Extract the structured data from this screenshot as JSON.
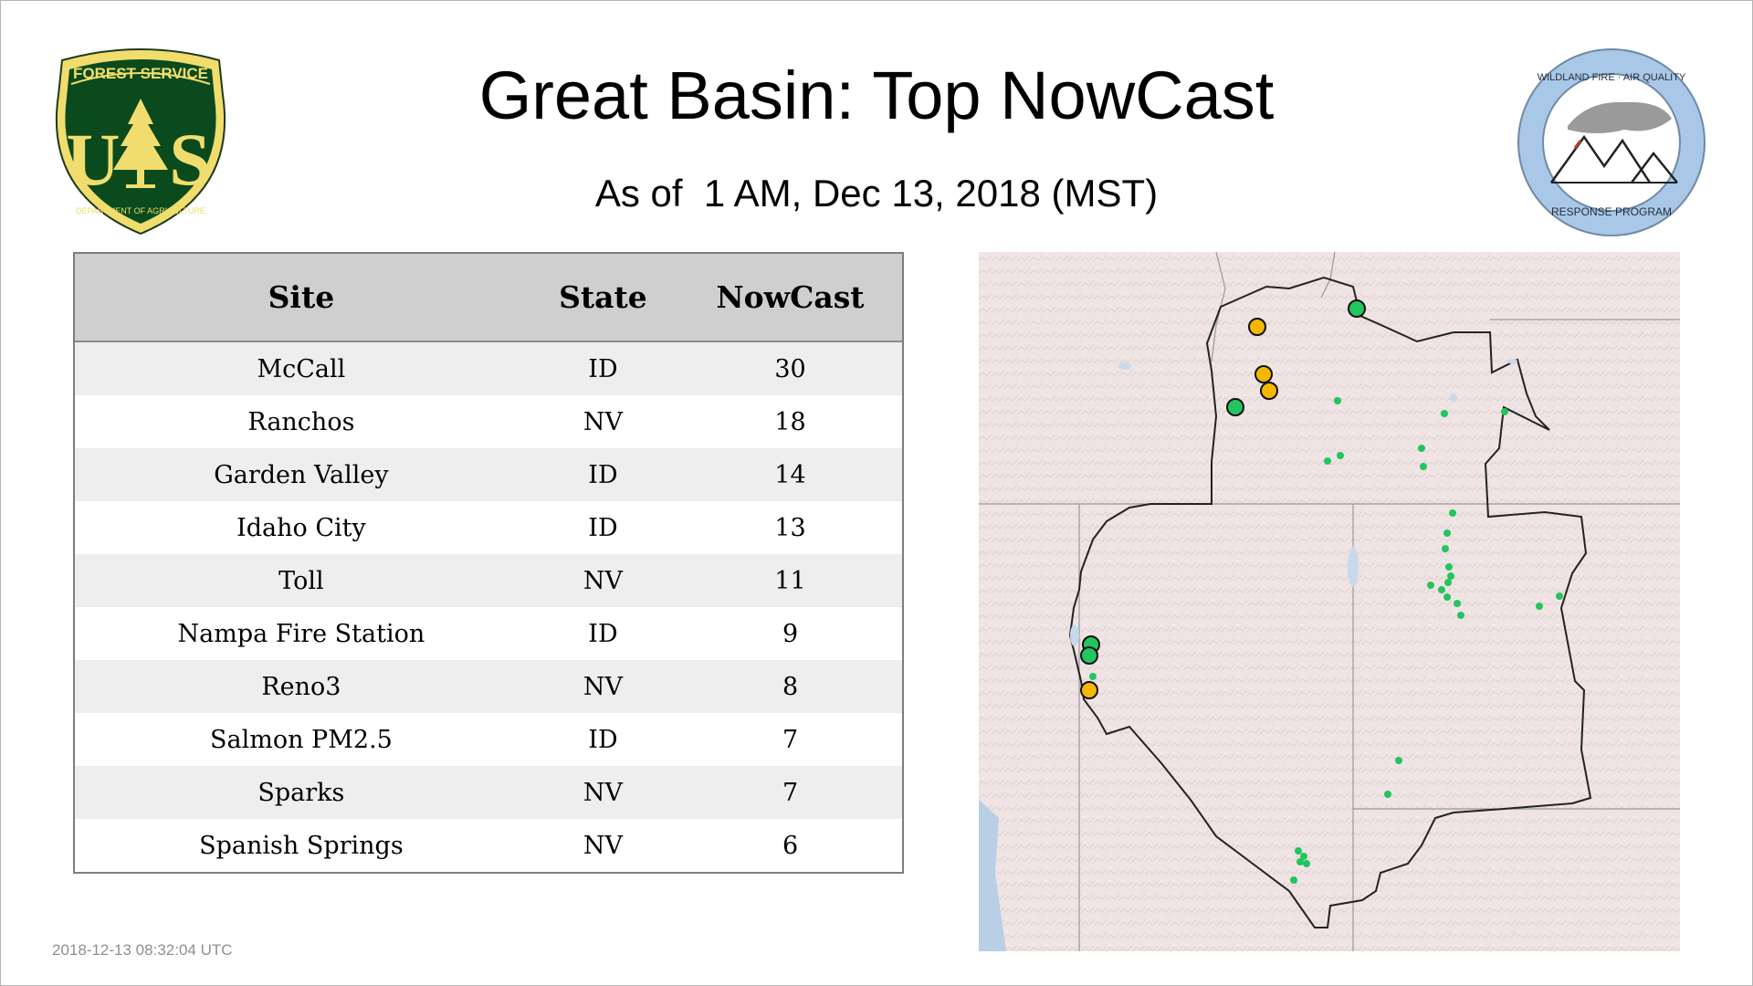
{
  "header": {
    "title": "Great Basin: Top NowCast",
    "subtitle": "As of  1 AM, Dec 13, 2018 (MST)"
  },
  "logos": {
    "left": {
      "top": "FOREST SERVICE",
      "letters": "US",
      "bottom": "DEPARTMENT OF AGRICULTURE"
    },
    "right": {
      "top": "WILDLAND FIRE · AIR QUALITY",
      "bottom": "RESPONSE PROGRAM"
    }
  },
  "table": {
    "headers": [
      "Site",
      "State",
      "NowCast"
    ],
    "rows": [
      {
        "site": "McCall",
        "state": "ID",
        "nowcast": "30"
      },
      {
        "site": "Ranchos",
        "state": "NV",
        "nowcast": "18"
      },
      {
        "site": "Garden Valley",
        "state": "ID",
        "nowcast": "14"
      },
      {
        "site": "Idaho City",
        "state": "ID",
        "nowcast": "13"
      },
      {
        "site": "Toll",
        "state": "NV",
        "nowcast": "11"
      },
      {
        "site": "Nampa Fire Station",
        "state": "ID",
        "nowcast": "9"
      },
      {
        "site": "Reno3",
        "state": "NV",
        "nowcast": "8"
      },
      {
        "site": "Salmon PM2.5",
        "state": "ID",
        "nowcast": "7"
      },
      {
        "site": "Sparks",
        "state": "NV",
        "nowcast": "7"
      },
      {
        "site": "Spanish Springs",
        "state": "NV",
        "nowcast": "6"
      }
    ]
  },
  "timestamp": "2018-12-13 08:32:04 UTC",
  "colors": {
    "aqi_good": "#22c55e",
    "aqi_moderate": "#f5b800",
    "forest_green": "#0b4a1c",
    "forest_yellow": "#f1dd6d",
    "wfaq_blue": "#a9c7e6",
    "header_gray": "#cfcfcf"
  }
}
